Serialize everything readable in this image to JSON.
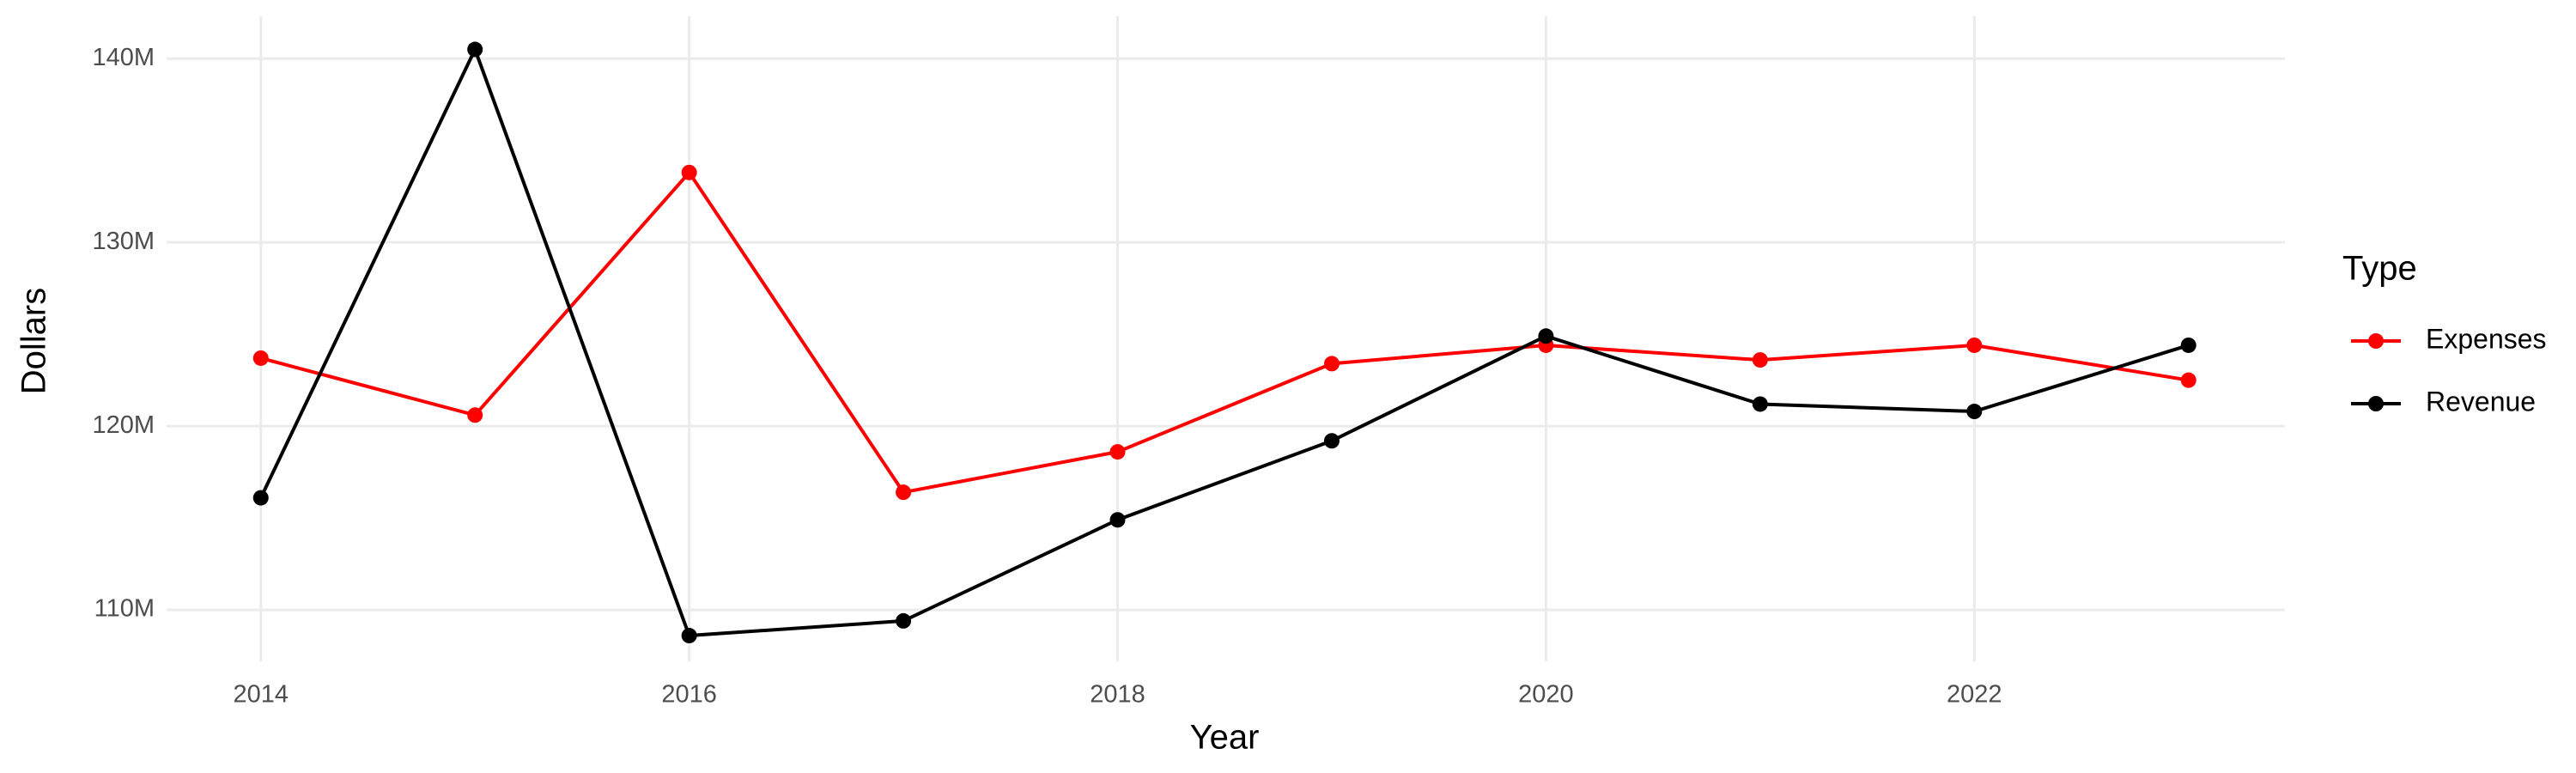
{
  "chart_data": {
    "type": "line",
    "x_label": "Year",
    "y_label": "Dollars",
    "legend_title": "Type",
    "x": [
      2014,
      2015,
      2016,
      2017,
      2018,
      2019,
      2020,
      2021,
      2022,
      2023
    ],
    "series": [
      {
        "name": "Expenses",
        "color": "#ff0000",
        "values": [
          123700000,
          120600000,
          133800000,
          116400000,
          118600000,
          123400000,
          124400000,
          123600000,
          124400000,
          122500000
        ]
      },
      {
        "name": "Revenue",
        "color": "#000000",
        "values": [
          116100000,
          140500000,
          108600000,
          109400000,
          114900000,
          119200000,
          124900000,
          121200000,
          120800000,
          124400000
        ]
      }
    ],
    "xlim": [
      2013.56,
      2023.45
    ],
    "xticks": [
      2014,
      2016,
      2018,
      2020,
      2022
    ],
    "ylim": [
      107200000,
      142300000
    ],
    "yticks": [
      {
        "value": 110000000,
        "label": "110M"
      },
      {
        "value": 120000000,
        "label": "120M"
      },
      {
        "value": 130000000,
        "label": "130M"
      },
      {
        "value": 140000000,
        "label": "140M"
      }
    ],
    "grid": true,
    "legend": "right"
  }
}
